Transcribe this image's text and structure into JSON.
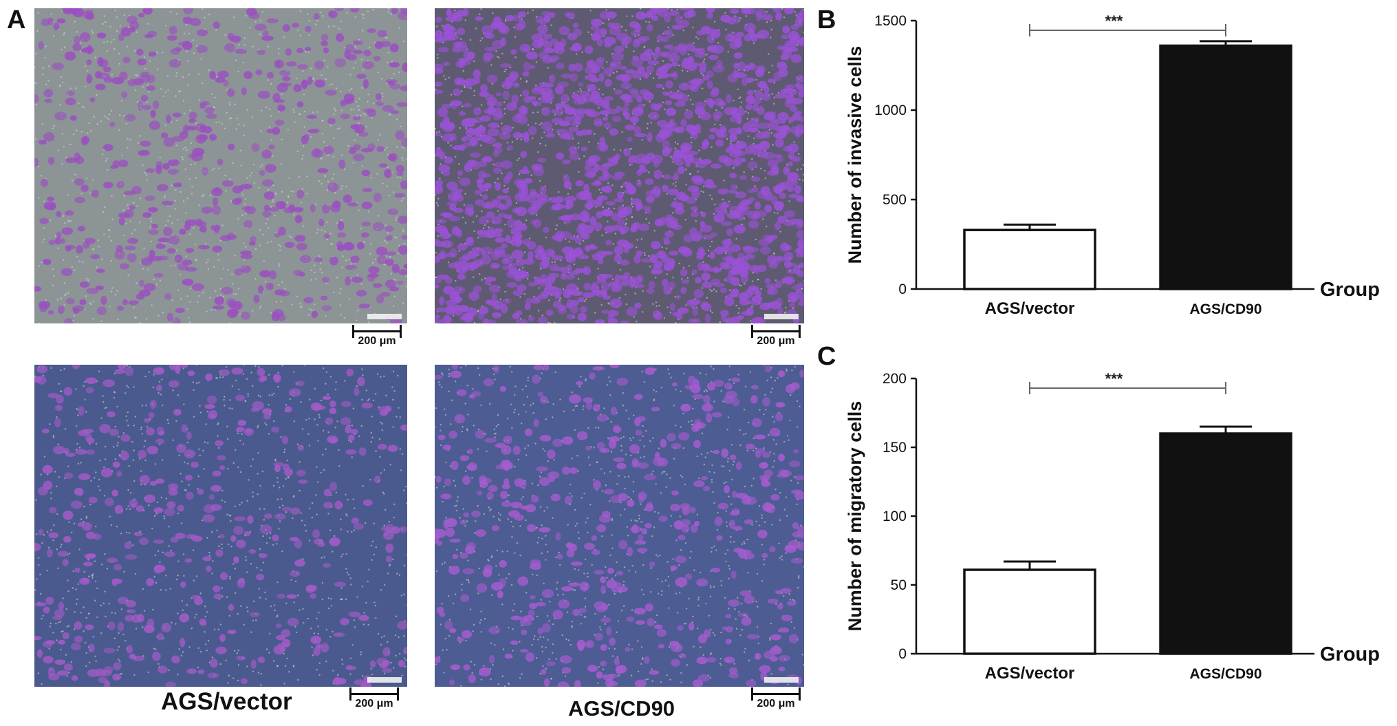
{
  "panels": {
    "a_label": "A",
    "b_label": "B",
    "c_label": "C"
  },
  "micrographs": {
    "scale_label": "200 μm",
    "group_labels": [
      "AGS/vector",
      "AGS/CD90"
    ],
    "images": [
      {
        "id": "invasion-vector",
        "background": "#8c9496",
        "cell_color": "#9b4fc0",
        "cell_density": 0.35
      },
      {
        "id": "invasion-cd90",
        "background": "#5e5a72",
        "cell_color": "#9a52d6",
        "cell_density": 1.0
      },
      {
        "id": "migration-vector",
        "background": "#4b5a8e",
        "cell_color": "#a45bc8",
        "cell_density": 0.25
      },
      {
        "id": "migration-cd90",
        "background": "#4d5c92",
        "cell_color": "#a55ccf",
        "cell_density": 0.3
      }
    ]
  },
  "chart_data": [
    {
      "type": "bar",
      "panel": "B",
      "categories": [
        "AGS/vector",
        "AGS/CD90"
      ],
      "values": [
        330,
        1360
      ],
      "errors": [
        30,
        25
      ],
      "bar_colors": [
        "#ffffff",
        "#111111"
      ],
      "ylabel": "Number of invasive cells",
      "xlabel": "Group",
      "ylim": [
        0,
        1500
      ],
      "yticks": [
        0,
        500,
        1000,
        1500
      ],
      "significance": "***"
    },
    {
      "type": "bar",
      "panel": "C",
      "categories": [
        "AGS/vector",
        "AGS/CD90"
      ],
      "values": [
        61,
        160
      ],
      "errors": [
        6,
        5
      ],
      "bar_colors": [
        "#ffffff",
        "#111111"
      ],
      "ylabel": "Number of migratory cells",
      "xlabel": "Group",
      "ylim": [
        0,
        200
      ],
      "yticks": [
        0,
        50,
        100,
        150,
        200
      ],
      "significance": "***"
    }
  ]
}
